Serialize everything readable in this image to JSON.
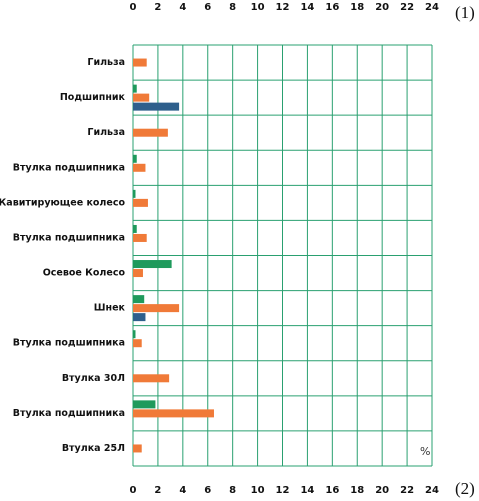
{
  "chart_data": {
    "type": "hbar",
    "categories": [
      "Гильза",
      "Подшипник",
      "Гильза",
      "Втулка подшипника",
      "Кавитирующее колесо",
      "Втулка подшипника",
      "Осевое Колесо",
      "Шнек",
      "Втулка подшипника",
      "Втулка 30Л",
      "Втулка подшипника",
      "Втулка 25Л"
    ],
    "series": [
      {
        "color": "#1f9a5c",
        "values": [
          null,
          0.3,
          null,
          0.3,
          0.2,
          0.3,
          3.1,
          0.9,
          0.2,
          null,
          1.8,
          null
        ]
      },
      {
        "color": "#f07a38",
        "values": [
          1.1,
          1.3,
          2.8,
          1.0,
          1.2,
          1.1,
          0.8,
          3.7,
          0.7,
          2.9,
          6.5,
          0.7
        ]
      },
      {
        "color": "#2e5f8c",
        "values": [
          null,
          3.7,
          null,
          null,
          null,
          null,
          null,
          1.0,
          null,
          null,
          null,
          null
        ]
      }
    ],
    "xlim": [
      0,
      24
    ],
    "xticks": [
      0,
      2,
      4,
      6,
      8,
      10,
      12,
      14,
      16,
      18,
      20,
      22,
      24
    ],
    "grid": true,
    "annotations": [
      "(1)",
      "(2)",
      "%"
    ]
  }
}
